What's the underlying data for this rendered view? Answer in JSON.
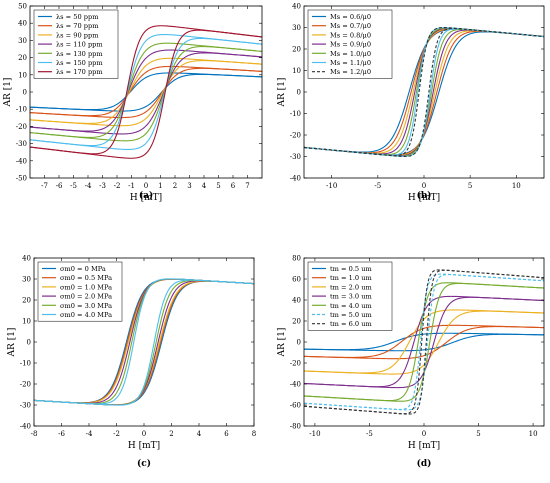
{
  "chart_data": [
    {
      "type": "line",
      "caption": "(a)",
      "xlabel": "H [mT]",
      "ylabel": "AR [1]",
      "xlim": [
        -8,
        8
      ],
      "ylim": [
        -50,
        50
      ],
      "xticks": [
        -7,
        -6,
        -5,
        -4,
        -3,
        -2,
        -1,
        0,
        1,
        2,
        3,
        4,
        5,
        6,
        7
      ],
      "yticks": [
        -50,
        -40,
        -30,
        -20,
        -10,
        0,
        10,
        20,
        30,
        40,
        50
      ],
      "grid": false,
      "legend_position": "top-left",
      "series": [
        {
          "name": "λs = 50 ppm",
          "color": "#0072BD",
          "dash": false,
          "sat": 12,
          "hc": 3.0,
          "w": 1.2,
          "cur": -0.4
        },
        {
          "name": "λs = 70 ppm",
          "color": "#D95319",
          "dash": false,
          "sat": 16,
          "hc": 3.1,
          "w": 1.2,
          "cur": -0.5
        },
        {
          "name": "λs = 90 ppm",
          "color": "#EDB120",
          "dash": false,
          "sat": 21,
          "hc": 3.2,
          "w": 1.2,
          "cur": -0.6
        },
        {
          "name": "λs = 110 ppm",
          "color": "#7E2F8E",
          "dash": false,
          "sat": 26,
          "hc": 3.4,
          "w": 1.2,
          "cur": -0.7
        },
        {
          "name": "λs = 130 ppm",
          "color": "#77AC30",
          "dash": false,
          "sat": 30,
          "hc": 3.5,
          "w": 1.1,
          "cur": -0.8
        },
        {
          "name": "λs = 150 ppm",
          "color": "#4DBEEE",
          "dash": false,
          "sat": 35,
          "hc": 3.6,
          "w": 1.0,
          "cur": -0.9
        },
        {
          "name": "λs = 170 ppm",
          "color": "#A2142F",
          "dash": false,
          "sat": 40,
          "hc": 3.7,
          "w": 0.9,
          "cur": -1.0
        }
      ]
    },
    {
      "type": "line",
      "caption": "(b)",
      "xlabel": "H [mT]",
      "ylabel": "AR [1]",
      "xlim": [
        -13,
        13
      ],
      "ylim": [
        -40,
        40
      ],
      "xticks": [
        -10,
        -5,
        0,
        5,
        10
      ],
      "yticks": [
        -40,
        -30,
        -20,
        -10,
        0,
        10,
        20,
        30,
        40
      ],
      "grid": false,
      "legend_position": "top-left",
      "series": [
        {
          "name": "Ms = 0.6/μ0",
          "color": "#0072BD",
          "dash": false,
          "sat": 31,
          "hc": 4.5,
          "w": 2.0,
          "cur": -0.4
        },
        {
          "name": "Ms = 0.7/μ0",
          "color": "#D95319",
          "dash": false,
          "sat": 31,
          "hc": 3.9,
          "w": 1.8,
          "cur": -0.4
        },
        {
          "name": "Ms = 0.8/μ0",
          "color": "#EDB120",
          "dash": false,
          "sat": 31,
          "hc": 3.3,
          "w": 1.6,
          "cur": -0.4
        },
        {
          "name": "Ms = 0.9/μ0",
          "color": "#7E2F8E",
          "dash": false,
          "sat": 31,
          "hc": 2.8,
          "w": 1.4,
          "cur": -0.4
        },
        {
          "name": "Ms = 1.0/μ0",
          "color": "#77AC30",
          "dash": false,
          "sat": 31,
          "hc": 2.3,
          "w": 1.2,
          "cur": -0.4
        },
        {
          "name": "Ms = 1.1/μ0",
          "color": "#4DBEEE",
          "dash": false,
          "sat": 31,
          "hc": 1.9,
          "w": 1.0,
          "cur": -0.4
        },
        {
          "name": "Ms = 1.2/μ0",
          "color": "#333333",
          "dash": true,
          "sat": 31,
          "hc": 1.5,
          "w": 0.9,
          "cur": -0.4
        }
      ]
    },
    {
      "type": "line",
      "caption": "(c)",
      "xlabel": "H [mT]",
      "ylabel": "AR [1]",
      "xlim": [
        -8,
        8
      ],
      "ylim": [
        -40,
        40
      ],
      "xticks": [
        -8,
        -6,
        -4,
        -2,
        0,
        2,
        4,
        6,
        8
      ],
      "yticks": [
        -40,
        -30,
        -20,
        -10,
        0,
        10,
        20,
        30,
        40
      ],
      "grid": false,
      "legend_position": "top-left",
      "series": [
        {
          "name": "σm0 = 0 MPa",
          "color": "#0072BD",
          "dash": false,
          "sat": 31,
          "hc": 3.6,
          "w": 1.2,
          "cur": -0.4
        },
        {
          "name": "σm0 = 0.5 MPa",
          "color": "#D95319",
          "dash": false,
          "sat": 31,
          "hc": 3.4,
          "w": 1.2,
          "cur": -0.4
        },
        {
          "name": "σm0 = 1.0 MPa",
          "color": "#EDB120",
          "dash": false,
          "sat": 31,
          "hc": 3.2,
          "w": 1.2,
          "cur": -0.4
        },
        {
          "name": "σm0 = 2.0 MPa",
          "color": "#7E2F8E",
          "dash": false,
          "sat": 31,
          "hc": 2.9,
          "w": 1.1,
          "cur": -0.4
        },
        {
          "name": "σm0 = 3.0 MPa",
          "color": "#77AC30",
          "dash": false,
          "sat": 31,
          "hc": 2.5,
          "w": 1.0,
          "cur": -0.4
        },
        {
          "name": "σm0 = 4.0 MPa",
          "color": "#4DBEEE",
          "dash": false,
          "sat": 31,
          "hc": 2.1,
          "w": 0.9,
          "cur": -0.4
        }
      ]
    },
    {
      "type": "line",
      "caption": "(d)",
      "xlabel": "H [mT]",
      "ylabel": "AR [1]",
      "xlim": [
        -11,
        11
      ],
      "ylim": [
        -80,
        80
      ],
      "xticks": [
        -10,
        -5,
        0,
        5,
        10
      ],
      "yticks": [
        -80,
        -60,
        -40,
        -20,
        0,
        20,
        40,
        60,
        80
      ],
      "grid": false,
      "legend_position": "top-left",
      "series": [
        {
          "name": "tm = 0.5 um",
          "color": "#0072BD",
          "dash": false,
          "sat": 9,
          "hc": 7.5,
          "w": 2.2,
          "cur": -0.2
        },
        {
          "name": "tm = 1.0 um",
          "color": "#D95319",
          "dash": false,
          "sat": 17,
          "hc": 5.8,
          "w": 2.0,
          "cur": -0.3
        },
        {
          "name": "tm = 2.0 um",
          "color": "#EDB120",
          "dash": false,
          "sat": 32,
          "hc": 3.8,
          "w": 1.6,
          "cur": -0.4
        },
        {
          "name": "tm = 3.0 um",
          "color": "#7E2F8E",
          "dash": false,
          "sat": 45,
          "hc": 2.6,
          "w": 1.2,
          "cur": -0.5
        },
        {
          "name": "tm = 4.0 um",
          "color": "#77AC30",
          "dash": false,
          "sat": 58,
          "hc": 1.5,
          "w": 0.9,
          "cur": -0.6
        },
        {
          "name": "tm = 5.0 um",
          "color": "#4DBEEE",
          "dash": true,
          "sat": 66,
          "hc": 0.9,
          "w": 0.6,
          "cur": -0.7
        },
        {
          "name": "tm = 6.0 um",
          "color": "#333333",
          "dash": true,
          "sat": 70,
          "hc": 0.6,
          "w": 0.5,
          "cur": -0.8
        }
      ]
    }
  ]
}
